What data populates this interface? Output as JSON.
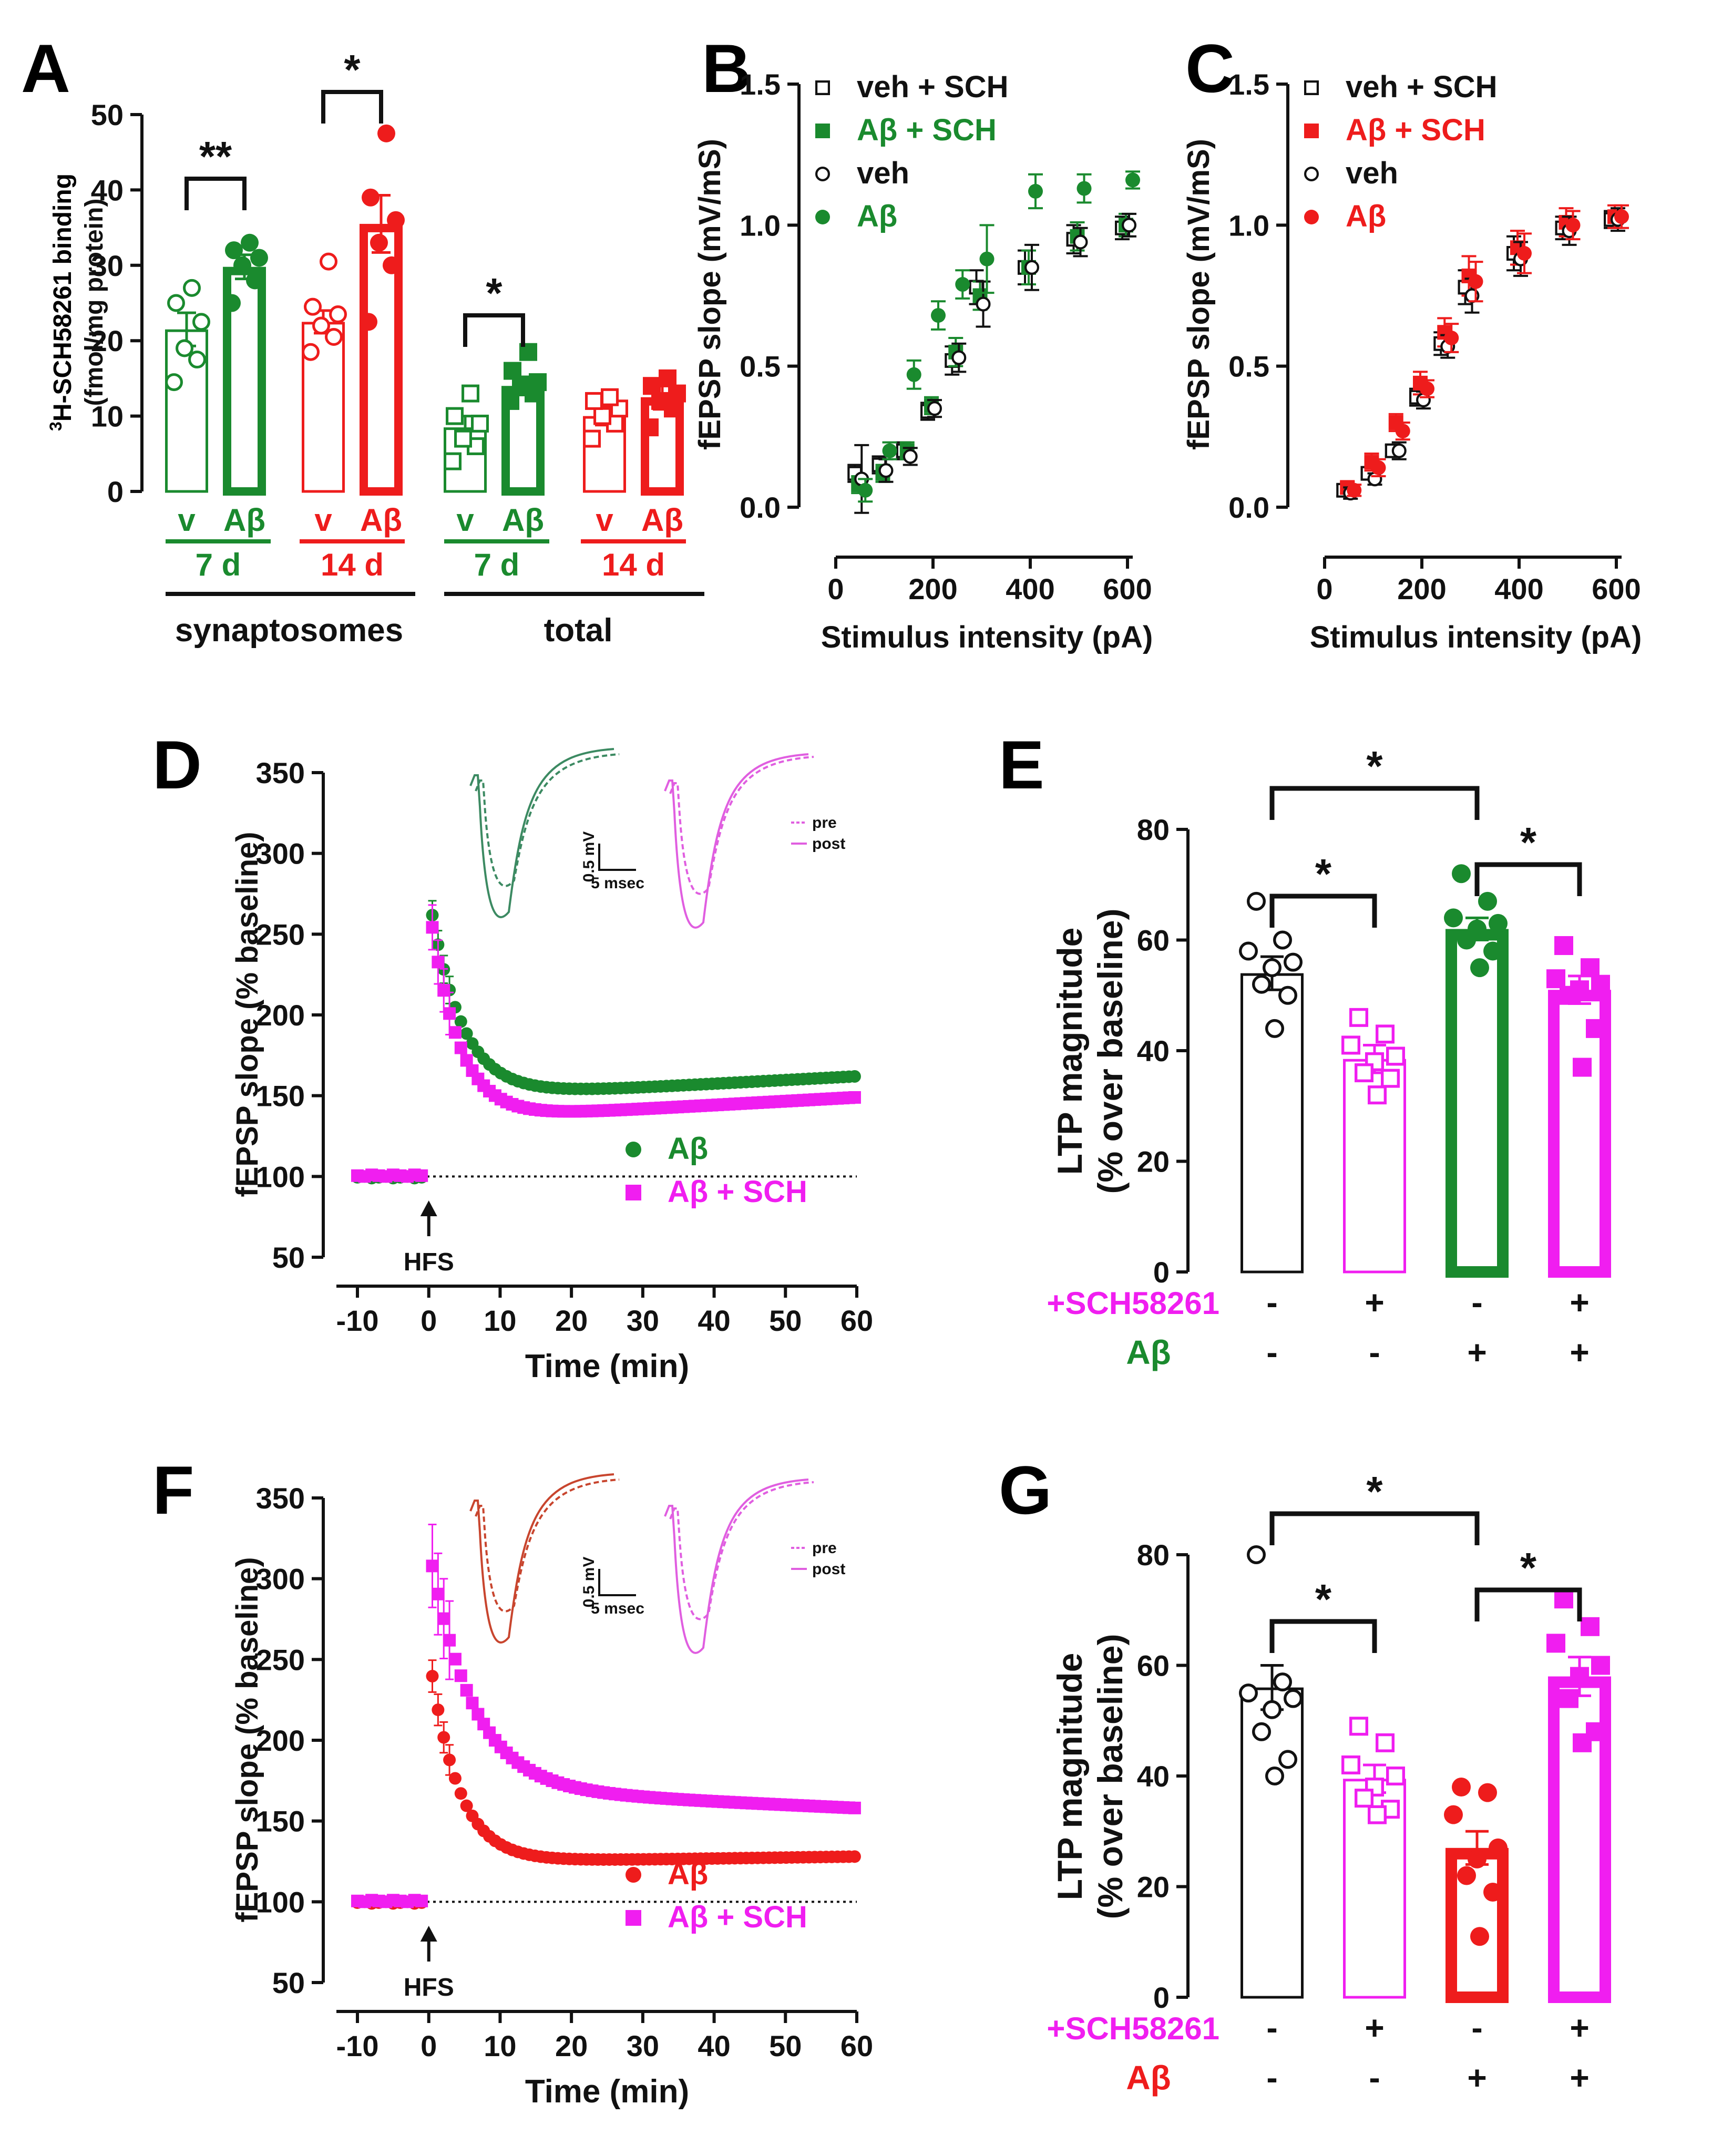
{
  "colors": {
    "black": "#111111",
    "green": "#1a8a2e",
    "red": "#ee1c1c",
    "magenta": "#f01ef0",
    "traceGreen": "#3c8a62",
    "traceRed": "#c8452e",
    "tracePink": "#e05ee0"
  },
  "panel_letters": {
    "A": "A",
    "B": "B",
    "C": "C",
    "D": "D",
    "E": "E",
    "F": "F",
    "G": "G"
  },
  "chart_data": [
    {
      "id": "A",
      "type": "bar",
      "ylabel_sup": "3",
      "ylabel_main": "H-SCH58261 binding",
      "ylabel_sub": "(fmol/mg protein)",
      "ylim": [
        0,
        50
      ],
      "yticks": [
        "0",
        "10",
        "20",
        "30",
        "40",
        "50"
      ],
      "bars": [
        {
          "label": "v",
          "mean": 21.5,
          "sem": 2.2,
          "color": "#1a8a2e",
          "filled": false,
          "marker": "circle",
          "points": [
            14.5,
            17.5,
            19,
            22.5,
            25,
            27
          ]
        },
        {
          "label": "Aβ",
          "mean": 29.8,
          "sem": 1.6,
          "color": "#1a8a2e",
          "filled": true,
          "marker": "circle",
          "points": [
            25,
            28,
            30,
            31,
            32,
            33
          ]
        },
        {
          "label": "v",
          "mean": 22.5,
          "sem": 1.5,
          "color": "#ee1c1c",
          "filled": false,
          "marker": "circle",
          "points": [
            18.5,
            20.5,
            22,
            23.5,
            24.5,
            30.5
          ]
        },
        {
          "label": "Aβ",
          "mean": 35.5,
          "sem": 3.8,
          "color": "#ee1c1c",
          "filled": true,
          "marker": "circle",
          "points": [
            22.5,
            30,
            33,
            36,
            39,
            47.5
          ]
        },
        {
          "label": "v",
          "mean": 8.5,
          "sem": 1.5,
          "color": "#1a8a2e",
          "filled": false,
          "marker": "square",
          "points": [
            4,
            6,
            7,
            9,
            10,
            13
          ]
        },
        {
          "label": "Aβ",
          "mean": 14,
          "sem": 1.2,
          "color": "#1a8a2e",
          "filled": true,
          "marker": "square",
          "points": [
            12,
            13,
            14,
            14.5,
            16,
            18.5
          ]
        },
        {
          "label": "v",
          "mean": 10,
          "sem": 1.2,
          "color": "#ee1c1c",
          "filled": false,
          "marker": "square",
          "points": [
            7,
            9,
            10,
            11,
            12,
            12.5
          ]
        },
        {
          "label": "Aβ",
          "mean": 12.5,
          "sem": 1.6,
          "color": "#ee1c1c",
          "filled": true,
          "marker": "square",
          "points": [
            8.5,
            11,
            12,
            13,
            14,
            15
          ]
        }
      ],
      "day_labels": [
        "7 d",
        "14 d",
        "7 d",
        "14 d"
      ],
      "group_labels": [
        "synaptosomes",
        "total"
      ],
      "significance": [
        "**",
        "*",
        "*"
      ]
    },
    {
      "id": "B",
      "type": "scatter",
      "ylabel": "fEPSP slope (mV/mS)",
      "xlabel": "Stimulus intensity (pA)",
      "xlim": [
        0,
        600
      ],
      "ylim": [
        0,
        1.5
      ],
      "xticks": [
        "0",
        "200",
        "400",
        "600"
      ],
      "yticks": [
        "0.0",
        "0.5",
        "1.0",
        "1.5"
      ],
      "x": [
        50,
        100,
        150,
        200,
        250,
        300,
        400,
        500,
        600
      ],
      "series": [
        {
          "name": "veh + SCH",
          "color": "#111111",
          "marker": "square",
          "filled": false,
          "y": [
            0.12,
            0.15,
            0.2,
            0.34,
            0.52,
            0.78,
            0.85,
            0.95,
            0.99
          ],
          "err": [
            0.03,
            0.03,
            0.03,
            0.03,
            0.05,
            0.06,
            0.06,
            0.05,
            0.04
          ]
        },
        {
          "name": "Aβ + SCH",
          "color": "#1a8a2e",
          "marker": "square",
          "filled": true,
          "y": [
            0.08,
            0.12,
            0.2,
            0.36,
            0.55,
            0.75,
            0.85,
            0.96,
            1.0
          ],
          "err": [
            0.03,
            0.03,
            0.03,
            0.03,
            0.05,
            0.05,
            0.06,
            0.05,
            0.04
          ]
        },
        {
          "name": "veh",
          "color": "#111111",
          "marker": "circle",
          "filled": false,
          "y": [
            0.1,
            0.13,
            0.18,
            0.35,
            0.53,
            0.72,
            0.85,
            0.94,
            1.0
          ],
          "err": [
            0.12,
            0.04,
            0.03,
            0.03,
            0.05,
            0.08,
            0.08,
            0.05,
            0.04
          ]
        },
        {
          "name": "Aβ",
          "color": "#1a8a2e",
          "marker": "circle",
          "filled": true,
          "y": [
            0.06,
            0.2,
            0.47,
            0.68,
            0.79,
            0.88,
            1.12,
            1.13,
            1.16
          ],
          "err": [
            0.04,
            0.03,
            0.05,
            0.05,
            0.05,
            0.12,
            0.06,
            0.05,
            0.03
          ]
        }
      ]
    },
    {
      "id": "C",
      "type": "scatter",
      "ylabel": "fEPSP slope (mV/mS)",
      "xlabel": "Stimulus intensity (pA)",
      "xlim": [
        0,
        600
      ],
      "ylim": [
        0,
        1.5
      ],
      "xticks": [
        "0",
        "200",
        "400",
        "600"
      ],
      "yticks": [
        "0.0",
        "0.5",
        "1.0",
        "1.5"
      ],
      "x": [
        50,
        100,
        150,
        200,
        250,
        300,
        400,
        500,
        600
      ],
      "series": [
        {
          "name": "veh + SCH",
          "color": "#111111",
          "marker": "square",
          "filled": false,
          "y": [
            0.06,
            0.12,
            0.2,
            0.39,
            0.58,
            0.78,
            0.9,
            0.99,
            1.02
          ],
          "err": [
            0.02,
            0.02,
            0.02,
            0.03,
            0.04,
            0.06,
            0.06,
            0.04,
            0.03
          ]
        },
        {
          "name": "Aβ + SCH",
          "color": "#ee1c1c",
          "marker": "square",
          "filled": true,
          "y": [
            0.07,
            0.16,
            0.3,
            0.44,
            0.62,
            0.82,
            0.92,
            1.01,
            1.03
          ],
          "err": [
            0.02,
            0.03,
            0.03,
            0.04,
            0.05,
            0.07,
            0.06,
            0.05,
            0.04
          ]
        },
        {
          "name": "veh",
          "color": "#111111",
          "marker": "circle",
          "filled": false,
          "y": [
            0.05,
            0.1,
            0.2,
            0.38,
            0.57,
            0.75,
            0.88,
            0.98,
            1.02
          ],
          "err": [
            0.02,
            0.02,
            0.03,
            0.03,
            0.04,
            0.06,
            0.06,
            0.05,
            0.04
          ]
        },
        {
          "name": "Aβ",
          "color": "#ee1c1c",
          "marker": "circle",
          "filled": true,
          "y": [
            0.06,
            0.14,
            0.27,
            0.42,
            0.6,
            0.8,
            0.9,
            1.0,
            1.03
          ],
          "err": [
            0.02,
            0.03,
            0.03,
            0.03,
            0.05,
            0.07,
            0.07,
            0.05,
            0.04
          ]
        }
      ]
    },
    {
      "id": "D",
      "type": "line",
      "ylabel": "fEPSP slope (% baseline)",
      "xlabel": "Time (min)",
      "xlim": [
        -10,
        60
      ],
      "ylim": [
        50,
        350
      ],
      "xticks": [
        "-10",
        "0",
        "10",
        "20",
        "30",
        "40",
        "50",
        "60"
      ],
      "yticks": [
        "50",
        "100",
        "150",
        "200",
        "250",
        "300",
        "350"
      ],
      "annotation": "HFS",
      "baseline": 100,
      "series": [
        {
          "name": "Aβ",
          "color": "#1a8a2e",
          "marker": "circle",
          "peak": 275,
          "plateau": 135,
          "final": 162,
          "tau": 4.5,
          "drift": 0.23,
          "err": 9
        },
        {
          "name": "Aβ + SCH",
          "color": "#f01ef0",
          "marker": "square",
          "peak": 270,
          "plateau": 118,
          "final": 149,
          "tau": 4,
          "drift": 0.24,
          "err": 14
        }
      ],
      "traces": {
        "scale_v": "0.5 mV",
        "scale_t": "5 msec",
        "legend": [
          "pre",
          "post"
        ]
      }
    },
    {
      "id": "E",
      "type": "bar",
      "ylabel": "LTP magnitude",
      "ylabel2": "(% over baseline)",
      "ylim": [
        0,
        80
      ],
      "yticks": [
        "0",
        "20",
        "40",
        "60",
        "80"
      ],
      "bars": [
        {
          "mean": 54,
          "sem": 3,
          "color": "#111111",
          "filled": false,
          "marker": "circle",
          "points": [
            67,
            60,
            58,
            56,
            55,
            52,
            50,
            44
          ]
        },
        {
          "mean": 38.5,
          "sem": 2.5,
          "color": "#f01ef0",
          "filled": false,
          "marker": "square",
          "points": [
            46,
            43,
            41,
            39,
            38,
            36,
            35,
            32
          ]
        },
        {
          "mean": 62,
          "sem": 2,
          "color": "#1a8a2e",
          "filled": true,
          "marker": "circle",
          "points": [
            72,
            67,
            64,
            63,
            62,
            60,
            58,
            55
          ]
        },
        {
          "mean": 51,
          "sem": 2.5,
          "color": "#f01ef0",
          "filled": true,
          "marker": "square",
          "points": [
            59,
            55,
            53,
            52,
            51,
            50,
            44,
            37
          ]
        }
      ],
      "row1_label": "+SCH58261",
      "row1": [
        "-",
        "+",
        "-",
        "+"
      ],
      "row2_label": "Aβ",
      "row2": [
        "-",
        "-",
        "+",
        "+"
      ],
      "significance": [
        "*",
        "*",
        "*"
      ]
    },
    {
      "id": "F",
      "type": "line",
      "ylabel": "fEPSP slope (% baseline)",
      "xlabel": "Time (min)",
      "xlim": [
        -10,
        60
      ],
      "ylim": [
        50,
        350
      ],
      "xticks": [
        "-10",
        "0",
        "10",
        "20",
        "30",
        "40",
        "50",
        "60"
      ],
      "yticks": [
        "50",
        "100",
        "150",
        "200",
        "250",
        "300",
        "350"
      ],
      "annotation": "HFS",
      "baseline": 100,
      "series": [
        {
          "name": "Aβ",
          "color": "#ee1c1c",
          "marker": "circle",
          "peak": 255,
          "plateau": 124,
          "final": 128,
          "tau": 4,
          "drift": 0.06,
          "err": 10
        },
        {
          "name": "Aβ + SCH",
          "color": "#f01ef0",
          "marker": "square",
          "peak": 320,
          "plateau": 172,
          "final": 158,
          "tau": 6,
          "drift": -0.2,
          "err": 26
        }
      ],
      "traces": {
        "scale_v": "0.5 mV",
        "scale_t": "5 msec",
        "legend": [
          "pre",
          "post"
        ]
      }
    },
    {
      "id": "G",
      "type": "bar",
      "ylabel": "LTP magnitude",
      "ylabel2": "(% over baseline)",
      "ylim": [
        0,
        80
      ],
      "yticks": [
        "0",
        "20",
        "40",
        "60",
        "80"
      ],
      "bars": [
        {
          "mean": 56,
          "sem": 4,
          "color": "#111111",
          "filled": false,
          "marker": "circle",
          "points": [
            80,
            57,
            55,
            54,
            52,
            48,
            43,
            40
          ]
        },
        {
          "mean": 39.5,
          "sem": 2.5,
          "color": "#f01ef0",
          "filled": false,
          "marker": "square",
          "points": [
            49,
            46,
            42,
            40,
            38,
            36,
            34,
            33
          ]
        },
        {
          "mean": 27,
          "sem": 3,
          "color": "#ee1c1c",
          "filled": true,
          "marker": "circle",
          "points": [
            38,
            37,
            33,
            27,
            25,
            22,
            19,
            11
          ]
        },
        {
          "mean": 58,
          "sem": 3.5,
          "color": "#f01ef0",
          "filled": true,
          "marker": "square",
          "points": [
            72,
            67,
            64,
            60,
            58,
            54,
            48,
            46
          ]
        }
      ],
      "row1_label": "+SCH58261",
      "row1": [
        "-",
        "+",
        "-",
        "+"
      ],
      "row2_label": "Aβ",
      "row2": [
        "-",
        "-",
        "+",
        "+"
      ],
      "significance": [
        "*",
        "*",
        "*"
      ]
    }
  ]
}
